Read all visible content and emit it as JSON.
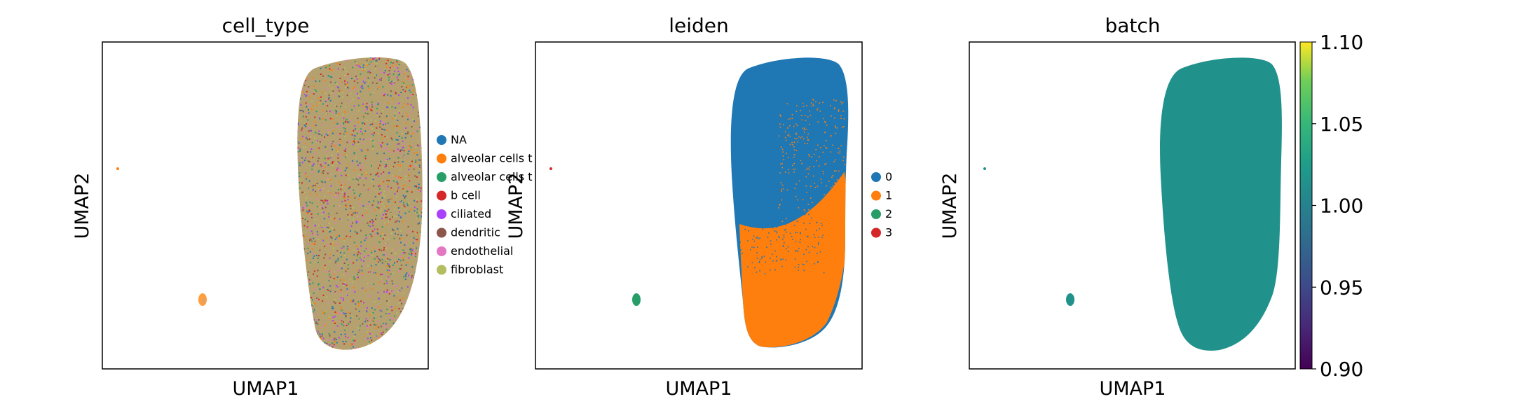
{
  "chart_data": [
    {
      "type": "scatter",
      "title": "cell_type",
      "xlabel": "UMAP1",
      "ylabel": "UMAP2",
      "grid": false,
      "legend_position": "right",
      "series": [
        {
          "name": "NA",
          "color": "#1f77b4"
        },
        {
          "name": "alveolar cells t",
          "color": "#ff7f0e"
        },
        {
          "name": "alveolar cells t",
          "color": "#279e68"
        },
        {
          "name": "b cell",
          "color": "#d62728"
        },
        {
          "name": "ciliated",
          "color": "#aa40fc"
        },
        {
          "name": "dendritic",
          "color": "#8c564b"
        },
        {
          "name": "endothelial",
          "color": "#e377c2"
        },
        {
          "name": "fibroblast",
          "color": "#b5bd61"
        }
      ]
    },
    {
      "type": "scatter",
      "title": "leiden",
      "xlabel": "UMAP1",
      "ylabel": "UMAP2",
      "grid": false,
      "legend_position": "right",
      "series": [
        {
          "name": "0",
          "color": "#1f77b4"
        },
        {
          "name": "1",
          "color": "#ff7f0e"
        },
        {
          "name": "2",
          "color": "#279e68"
        },
        {
          "name": "3",
          "color": "#d62728"
        }
      ]
    },
    {
      "type": "scatter",
      "title": "batch",
      "xlabel": "UMAP1",
      "ylabel": "UMAP2",
      "grid": false,
      "point_color": "#21918c",
      "colorbar": {
        "colormap": "viridis",
        "range": [
          0.9,
          1.1
        ],
        "ticks": [
          "1.10",
          "1.05",
          "1.00",
          "0.95",
          "0.90"
        ]
      }
    }
  ]
}
